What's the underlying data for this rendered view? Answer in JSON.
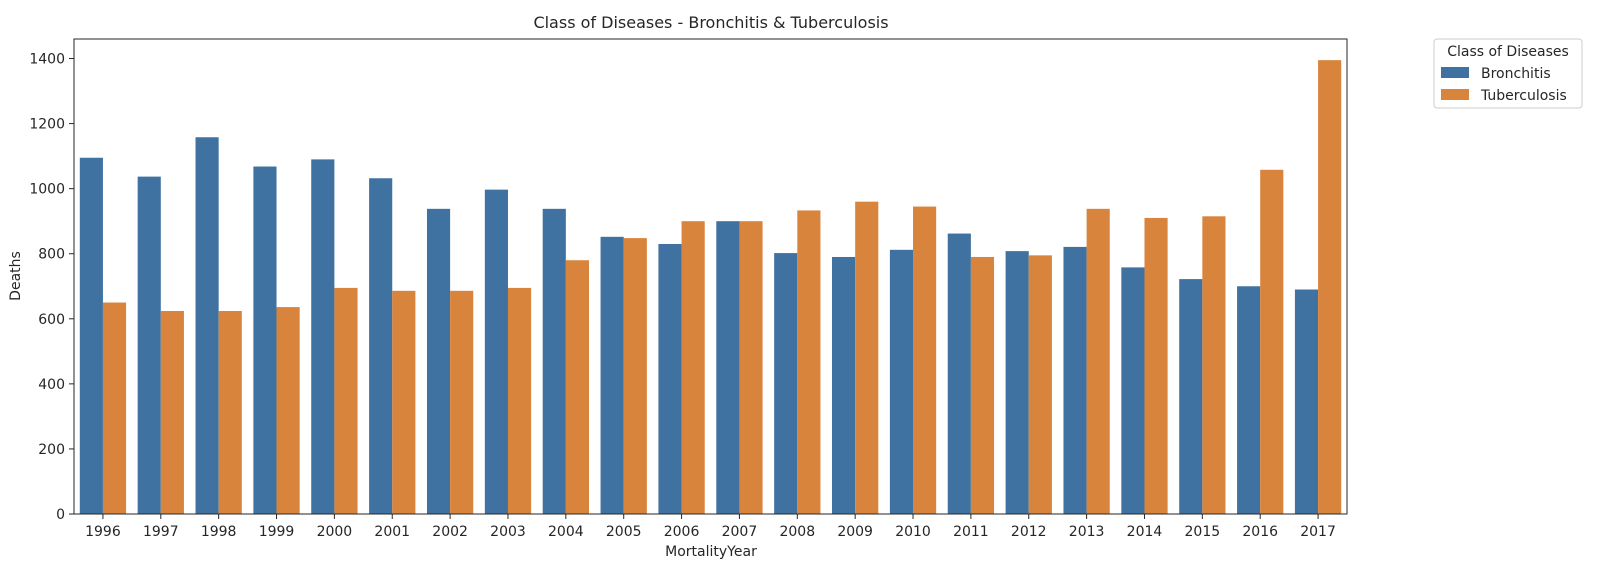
{
  "chart_data": {
    "type": "bar",
    "title": "Class of Diseases - Bronchitis & Tuberculosis",
    "xlabel": "MortalityYear",
    "ylabel": "Deaths",
    "ylim": [
      0,
      1460
    ],
    "yticks": [
      0,
      200,
      400,
      600,
      800,
      1000,
      1200,
      1400
    ],
    "grid": false,
    "legend": {
      "title": "Class of Diseases",
      "placement": "outside-top-right"
    },
    "categories": [
      "1996",
      "1997",
      "1998",
      "1999",
      "2000",
      "2001",
      "2002",
      "2003",
      "2004",
      "2005",
      "2006",
      "2007",
      "2008",
      "2009",
      "2010",
      "2011",
      "2012",
      "2013",
      "2014",
      "2015",
      "2016",
      "2017"
    ],
    "series": [
      {
        "name": "Bronchitis",
        "color": "#3f72a0",
        "values": [
          1095,
          1037,
          1158,
          1068,
          1090,
          1032,
          938,
          997,
          938,
          852,
          830,
          900,
          802,
          790,
          812,
          862,
          808,
          821,
          758,
          722,
          700,
          690
        ]
      },
      {
        "name": "Tuberculosis",
        "color": "#d9843c",
        "values": [
          650,
          624,
          624,
          636,
          695,
          686,
          686,
          695,
          780,
          848,
          900,
          900,
          933,
          960,
          945,
          790,
          795,
          938,
          910,
          915,
          1058,
          1395
        ]
      }
    ]
  }
}
